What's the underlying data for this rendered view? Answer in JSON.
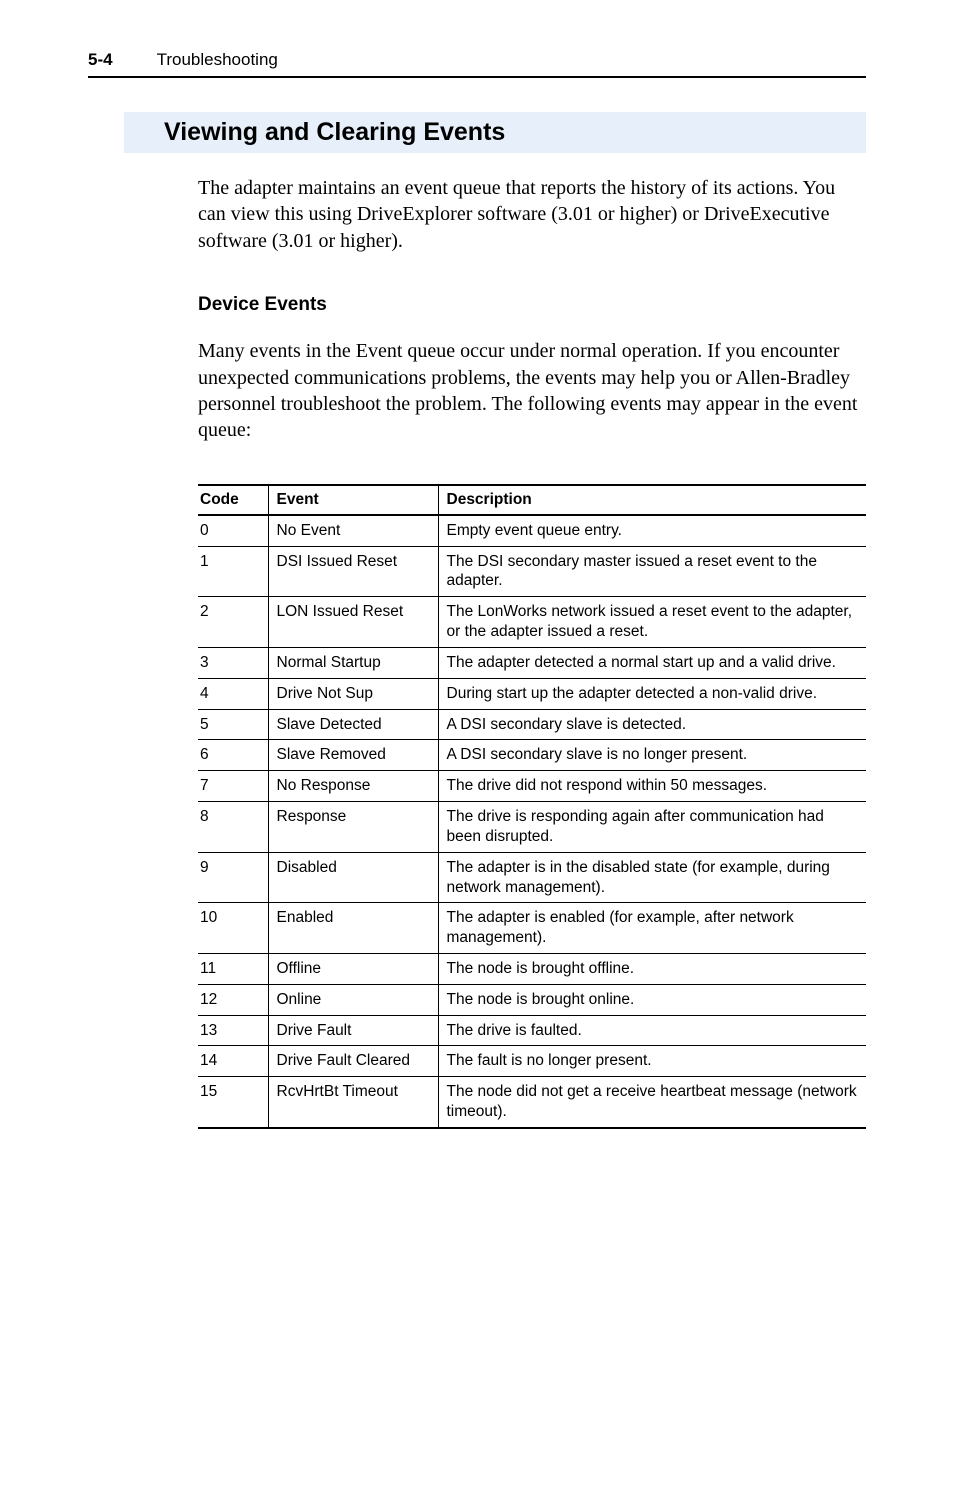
{
  "header": {
    "page_number": "5-4",
    "chapter": "Troubleshooting"
  },
  "section": {
    "heading": "Viewing and Clearing Events",
    "intro": "The adapter maintains an event queue that reports the history of its actions. You can view this using DriveExplorer software (3.01 or higher) or DriveExecutive software (3.01 or higher).",
    "subheading": "Device Events",
    "sub_intro": "Many events in the Event queue occur under normal operation. If you encounter unexpected communications problems, the events may help you or Allen-Bradley personnel troubleshoot the problem. The following events may appear in the event queue:"
  },
  "table": {
    "columns": [
      "Code",
      "Event",
      "Description"
    ],
    "rows": [
      [
        "0",
        "No Event",
        "Empty event queue entry."
      ],
      [
        "1",
        "DSI Issued Reset",
        "The DSI secondary master issued a reset event to the adapter."
      ],
      [
        "2",
        "LON Issued Reset",
        "The LonWorks network issued a reset event to the adapter, or the adapter issued a reset."
      ],
      [
        "3",
        "Normal Startup",
        "The adapter detected a normal start up and a valid drive."
      ],
      [
        "4",
        "Drive Not Sup",
        "During start up the adapter detected a non-valid drive."
      ],
      [
        "5",
        "Slave Detected",
        "A DSI secondary slave is detected."
      ],
      [
        "6",
        "Slave Removed",
        "A DSI secondary slave is no longer present."
      ],
      [
        "7",
        "No Response",
        "The drive did not respond within 50 messages."
      ],
      [
        "8",
        "Response",
        "The drive is responding again after communication had been disrupted."
      ],
      [
        "9",
        "Disabled",
        "The adapter is in the disabled state (for example, during network management)."
      ],
      [
        "10",
        "Enabled",
        "The adapter is enabled (for example, after network management)."
      ],
      [
        "11",
        "Offline",
        "The node is brought offline."
      ],
      [
        "12",
        "Online",
        "The node is brought online."
      ],
      [
        "13",
        "Drive Fault",
        "The drive is faulted."
      ],
      [
        "14",
        "Drive Fault Cleared",
        "The fault is no longer present."
      ],
      [
        "15",
        "RcvHrtBt Timeout",
        "The node did not get a receive heartbeat message (network timeout)."
      ]
    ]
  },
  "style": {
    "heading_bg": "#e6effa",
    "rule_color": "#000000",
    "body_font": "Times New Roman",
    "ui_font": "Arial"
  }
}
